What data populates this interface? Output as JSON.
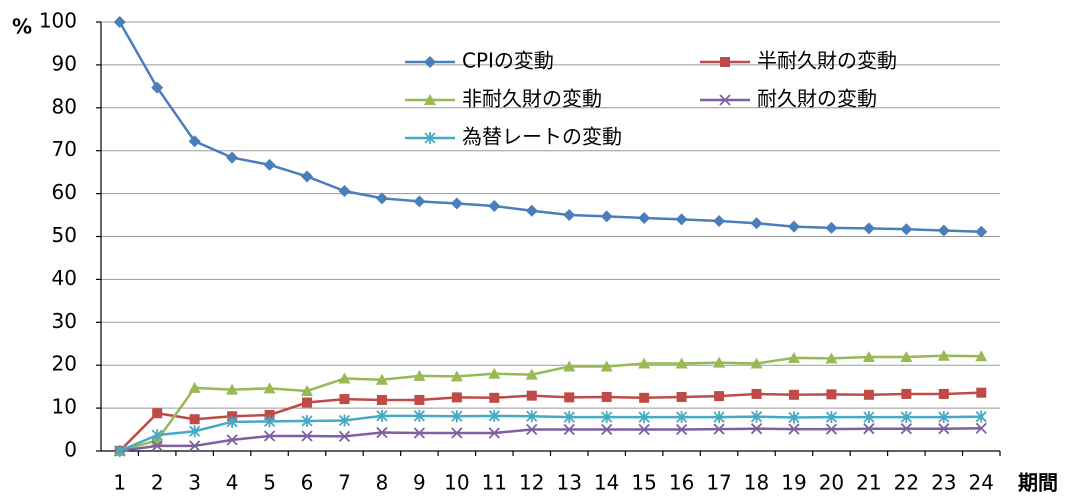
{
  "chart_data": {
    "type": "line",
    "ylabel": "%",
    "xlabel": "期間",
    "categories": [
      "1",
      "2",
      "3",
      "4",
      "5",
      "6",
      "7",
      "8",
      "9",
      "10",
      "11",
      "12",
      "13",
      "14",
      "15",
      "16",
      "17",
      "18",
      "19",
      "20",
      "21",
      "22",
      "23",
      "24"
    ],
    "ylim": [
      0,
      100
    ],
    "yticks": [
      0,
      10,
      20,
      30,
      40,
      50,
      60,
      70,
      80,
      90,
      100
    ],
    "grid": true,
    "series": [
      {
        "name": "CPIの変動",
        "color": "#4a7ebb",
        "marker": "diamond",
        "values": [
          100,
          84.7,
          72.2,
          68.4,
          66.7,
          64,
          60.6,
          58.9,
          58.2,
          57.7,
          57.1,
          56,
          55,
          54.7,
          54.3,
          54,
          53.6,
          53.1,
          52.3,
          52,
          51.9,
          51.7,
          51.4,
          51.1
        ]
      },
      {
        "name": "半耐久財の変動",
        "color": "#be4b48",
        "marker": "square",
        "values": [
          0,
          8.8,
          7.4,
          8.1,
          8.4,
          11.3,
          12.1,
          11.9,
          11.9,
          12.5,
          12.4,
          12.9,
          12.5,
          12.6,
          12.4,
          12.6,
          12.8,
          13.3,
          13.1,
          13.2,
          13.1,
          13.3,
          13.3,
          13.6
        ]
      },
      {
        "name": "非耐久財の変動",
        "color": "#98b954",
        "marker": "triangle",
        "values": [
          0,
          2.5,
          14.7,
          14.3,
          14.6,
          14,
          16.9,
          16.6,
          17.5,
          17.4,
          18,
          17.8,
          19.7,
          19.7,
          20.4,
          20.4,
          20.6,
          20.4,
          21.7,
          21.6,
          21.9,
          21.9,
          22.2,
          22.1
        ]
      },
      {
        "name": "耐久財の変動",
        "color": "#7d60a0",
        "marker": "x",
        "values": [
          0,
          1.2,
          1.2,
          2.6,
          3.5,
          3.5,
          3.4,
          4.3,
          4.2,
          4.2,
          4.2,
          5.0,
          5.0,
          5.0,
          5.0,
          5.0,
          5.1,
          5.2,
          5.1,
          5.1,
          5.2,
          5.2,
          5.2,
          5.3
        ]
      },
      {
        "name": "為替レートの変動",
        "color": "#46aac5",
        "marker": "asterisk",
        "values": [
          0,
          3.7,
          4.6,
          6.8,
          6.9,
          7.0,
          7.1,
          8.2,
          8.2,
          8.1,
          8.2,
          8.1,
          7.9,
          7.9,
          7.9,
          7.9,
          7.9,
          8.0,
          7.8,
          7.9,
          7.9,
          7.9,
          7.9,
          8.0
        ]
      }
    ]
  }
}
